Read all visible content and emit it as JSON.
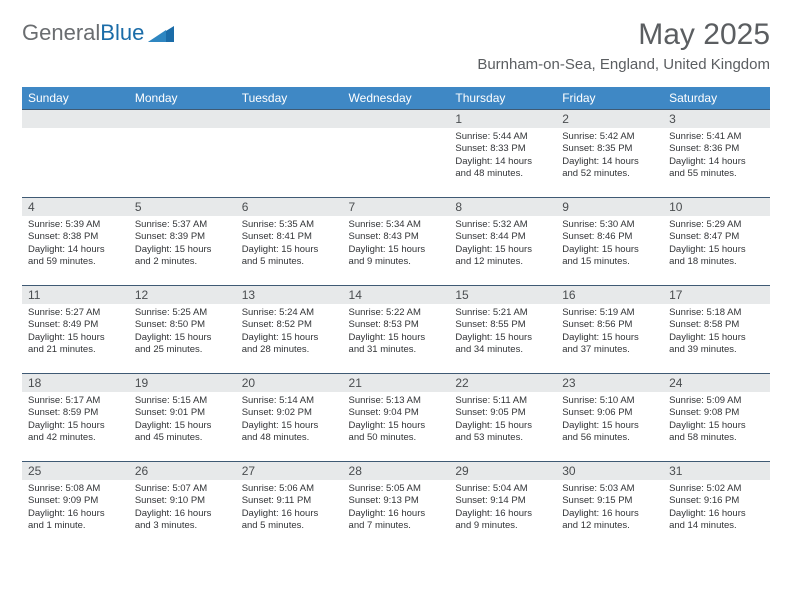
{
  "brand": {
    "part1": "General",
    "part2": "Blue"
  },
  "title": "May 2025",
  "subtitle": "Burnham-on-Sea, England, United Kingdom",
  "colors": {
    "header_bg": "#3f88c5",
    "header_fg": "#ffffff",
    "daynum_bg": "#e7e9ea",
    "rule": "#3f5a74",
    "title_fg": "#5b5e61",
    "logo_gray": "#6a6d70",
    "logo_blue": "#1b6ca8"
  },
  "dow": [
    "Sunday",
    "Monday",
    "Tuesday",
    "Wednesday",
    "Thursday",
    "Friday",
    "Saturday"
  ],
  "weeks": [
    [
      null,
      null,
      null,
      null,
      {
        "n": "1",
        "sr": "5:44 AM",
        "ss": "8:33 PM",
        "dl": "14 hours and 48 minutes."
      },
      {
        "n": "2",
        "sr": "5:42 AM",
        "ss": "8:35 PM",
        "dl": "14 hours and 52 minutes."
      },
      {
        "n": "3",
        "sr": "5:41 AM",
        "ss": "8:36 PM",
        "dl": "14 hours and 55 minutes."
      }
    ],
    [
      {
        "n": "4",
        "sr": "5:39 AM",
        "ss": "8:38 PM",
        "dl": "14 hours and 59 minutes."
      },
      {
        "n": "5",
        "sr": "5:37 AM",
        "ss": "8:39 PM",
        "dl": "15 hours and 2 minutes."
      },
      {
        "n": "6",
        "sr": "5:35 AM",
        "ss": "8:41 PM",
        "dl": "15 hours and 5 minutes."
      },
      {
        "n": "7",
        "sr": "5:34 AM",
        "ss": "8:43 PM",
        "dl": "15 hours and 9 minutes."
      },
      {
        "n": "8",
        "sr": "5:32 AM",
        "ss": "8:44 PM",
        "dl": "15 hours and 12 minutes."
      },
      {
        "n": "9",
        "sr": "5:30 AM",
        "ss": "8:46 PM",
        "dl": "15 hours and 15 minutes."
      },
      {
        "n": "10",
        "sr": "5:29 AM",
        "ss": "8:47 PM",
        "dl": "15 hours and 18 minutes."
      }
    ],
    [
      {
        "n": "11",
        "sr": "5:27 AM",
        "ss": "8:49 PM",
        "dl": "15 hours and 21 minutes."
      },
      {
        "n": "12",
        "sr": "5:25 AM",
        "ss": "8:50 PM",
        "dl": "15 hours and 25 minutes."
      },
      {
        "n": "13",
        "sr": "5:24 AM",
        "ss": "8:52 PM",
        "dl": "15 hours and 28 minutes."
      },
      {
        "n": "14",
        "sr": "5:22 AM",
        "ss": "8:53 PM",
        "dl": "15 hours and 31 minutes."
      },
      {
        "n": "15",
        "sr": "5:21 AM",
        "ss": "8:55 PM",
        "dl": "15 hours and 34 minutes."
      },
      {
        "n": "16",
        "sr": "5:19 AM",
        "ss": "8:56 PM",
        "dl": "15 hours and 37 minutes."
      },
      {
        "n": "17",
        "sr": "5:18 AM",
        "ss": "8:58 PM",
        "dl": "15 hours and 39 minutes."
      }
    ],
    [
      {
        "n": "18",
        "sr": "5:17 AM",
        "ss": "8:59 PM",
        "dl": "15 hours and 42 minutes."
      },
      {
        "n": "19",
        "sr": "5:15 AM",
        "ss": "9:01 PM",
        "dl": "15 hours and 45 minutes."
      },
      {
        "n": "20",
        "sr": "5:14 AM",
        "ss": "9:02 PM",
        "dl": "15 hours and 48 minutes."
      },
      {
        "n": "21",
        "sr": "5:13 AM",
        "ss": "9:04 PM",
        "dl": "15 hours and 50 minutes."
      },
      {
        "n": "22",
        "sr": "5:11 AM",
        "ss": "9:05 PM",
        "dl": "15 hours and 53 minutes."
      },
      {
        "n": "23",
        "sr": "5:10 AM",
        "ss": "9:06 PM",
        "dl": "15 hours and 56 minutes."
      },
      {
        "n": "24",
        "sr": "5:09 AM",
        "ss": "9:08 PM",
        "dl": "15 hours and 58 minutes."
      }
    ],
    [
      {
        "n": "25",
        "sr": "5:08 AM",
        "ss": "9:09 PM",
        "dl": "16 hours and 1 minute."
      },
      {
        "n": "26",
        "sr": "5:07 AM",
        "ss": "9:10 PM",
        "dl": "16 hours and 3 minutes."
      },
      {
        "n": "27",
        "sr": "5:06 AM",
        "ss": "9:11 PM",
        "dl": "16 hours and 5 minutes."
      },
      {
        "n": "28",
        "sr": "5:05 AM",
        "ss": "9:13 PM",
        "dl": "16 hours and 7 minutes."
      },
      {
        "n": "29",
        "sr": "5:04 AM",
        "ss": "9:14 PM",
        "dl": "16 hours and 9 minutes."
      },
      {
        "n": "30",
        "sr": "5:03 AM",
        "ss": "9:15 PM",
        "dl": "16 hours and 12 minutes."
      },
      {
        "n": "31",
        "sr": "5:02 AM",
        "ss": "9:16 PM",
        "dl": "16 hours and 14 minutes."
      }
    ]
  ],
  "labels": {
    "sunrise": "Sunrise:",
    "sunset": "Sunset:",
    "daylight": "Daylight:"
  }
}
